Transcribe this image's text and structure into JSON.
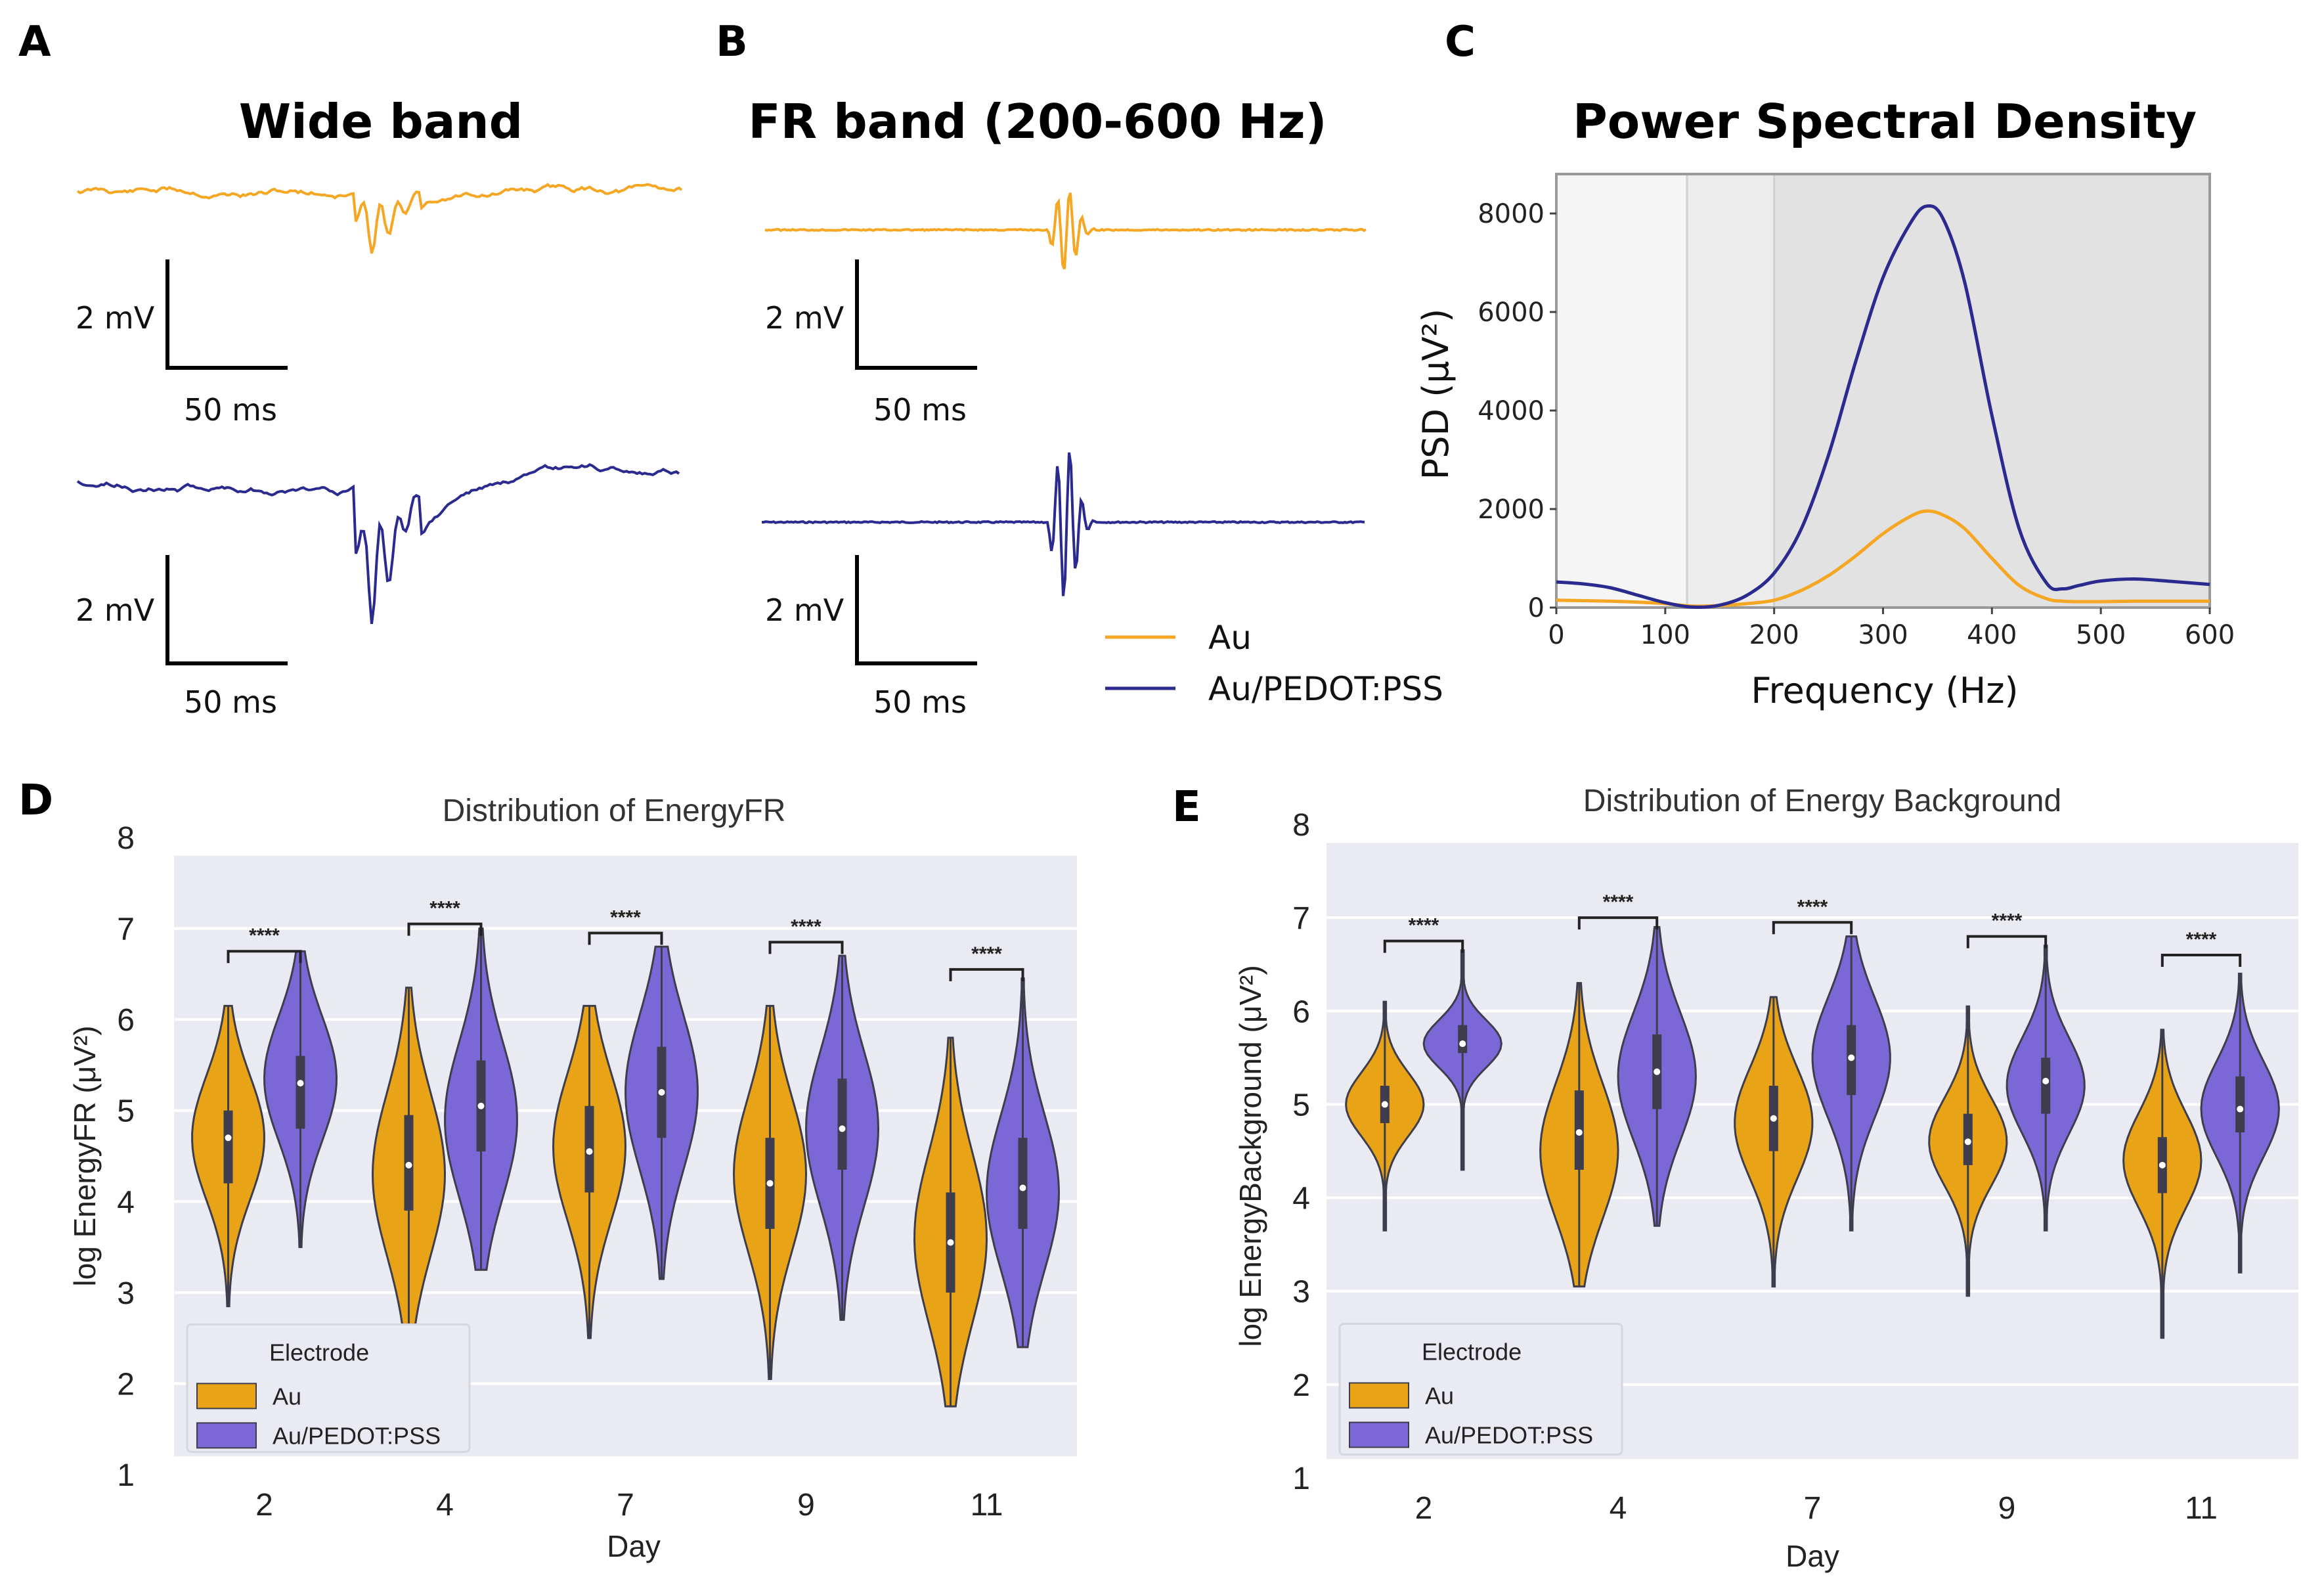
{
  "colors": {
    "au": "#f5a623",
    "pedot": "#2b2a8f",
    "au_violin": "#e8a317",
    "pedot_violin": "#7b68d6",
    "seaborn_bg": "#eaeaf2",
    "violin_edge": "#3d3d4d"
  },
  "panel_labels": [
    "A",
    "B",
    "C",
    "D",
    "E"
  ],
  "panelA": {
    "title": "Wide band",
    "scalebar_v": "2 mV",
    "scalebar_h": "50 ms"
  },
  "panelB": {
    "title": "FR band (200-600 Hz)",
    "scalebar_v": "2 mV",
    "scalebar_h": "50 ms",
    "legend": [
      {
        "label": "Au",
        "series": "au"
      },
      {
        "label": "Au/PEDOT:PSS",
        "series": "pedot"
      }
    ]
  },
  "chart_data": [
    {
      "id": "psd",
      "type": "line",
      "title": "Power Spectral Density",
      "xlabel": "Frequency (Hz)",
      "ylabel": "PSD (μV²)",
      "xlim": [
        0,
        600
      ],
      "ylim": [
        0,
        8800
      ],
      "xticks": [
        0,
        100,
        200,
        300,
        400,
        500,
        600
      ],
      "yticks": [
        0,
        2000,
        4000,
        6000,
        8000
      ],
      "shaded_regions": [
        {
          "from": 0,
          "to": 120,
          "shade": "lightest"
        },
        {
          "from": 120,
          "to": 200,
          "shade": "light"
        },
        {
          "from": 200,
          "to": 600,
          "shade": "medium"
        }
      ],
      "x": [
        0,
        25,
        50,
        75,
        100,
        125,
        150,
        175,
        200,
        225,
        250,
        275,
        300,
        325,
        340,
        355,
        375,
        400,
        425,
        450,
        465,
        480,
        500,
        530,
        560,
        600
      ],
      "series": [
        {
          "name": "Au/PEDOT:PSS",
          "color_key": "pedot",
          "values": [
            520,
            480,
            400,
            250,
            100,
            10,
            50,
            250,
            700,
            1600,
            3100,
            5000,
            6700,
            7800,
            8150,
            7900,
            6600,
            3900,
            1600,
            500,
            380,
            450,
            540,
            580,
            540,
            470
          ]
        },
        {
          "name": "Au",
          "color_key": "au",
          "values": [
            150,
            140,
            130,
            110,
            80,
            30,
            40,
            80,
            150,
            350,
            650,
            1050,
            1500,
            1850,
            1960,
            1880,
            1600,
            1000,
            450,
            180,
            130,
            120,
            120,
            130,
            130,
            130
          ]
        }
      ]
    },
    {
      "id": "energyFR",
      "type": "violin",
      "title": "Distribution of EnergyFR",
      "xlabel": "Day",
      "ylabel": "log EnergyFR (μV²)",
      "ylim": [
        1,
        8
      ],
      "yticks": [
        1,
        2,
        3,
        4,
        5,
        6,
        7,
        8
      ],
      "categories": [
        "2",
        "4",
        "7",
        "9",
        "11"
      ],
      "legend_title": "Electrode",
      "legend": [
        {
          "label": "Au",
          "color_key": "au_violin"
        },
        {
          "label": "Au/PEDOT:PSS",
          "color_key": "pedot_violin"
        }
      ],
      "significance": [
        "****",
        "****",
        "****",
        "****",
        "****"
      ],
      "bracket_heights": [
        6.75,
        7.05,
        6.95,
        6.85,
        6.55
      ],
      "series": [
        {
          "name": "Au",
          "min": [
            2.85,
            2.65,
            2.5,
            2.05,
            1.75
          ],
          "max": [
            6.15,
            6.35,
            6.15,
            6.15,
            5.8
          ],
          "q1": [
            4.2,
            3.9,
            4.1,
            3.7,
            3.0
          ],
          "median": [
            4.7,
            4.4,
            4.55,
            4.2,
            3.55
          ],
          "q3": [
            5.0,
            4.95,
            5.05,
            4.7,
            4.1
          ],
          "mode": [
            4.7,
            4.3,
            4.6,
            4.3,
            3.6
          ]
        },
        {
          "name": "Au/PEDOT:PSS",
          "min": [
            3.5,
            3.25,
            3.15,
            2.7,
            2.4
          ],
          "max": [
            6.75,
            7.0,
            6.8,
            6.7,
            6.45
          ],
          "q1": [
            4.8,
            4.55,
            4.7,
            4.35,
            3.7
          ],
          "median": [
            5.3,
            5.05,
            5.2,
            4.8,
            4.15
          ],
          "q3": [
            5.6,
            5.55,
            5.7,
            5.35,
            4.7
          ],
          "mode": [
            5.35,
            4.9,
            5.2,
            4.8,
            4.1
          ]
        }
      ]
    },
    {
      "id": "energyBG",
      "type": "violin",
      "title": "Distribution of Energy Background",
      "xlabel": "Day",
      "ylabel": "log EnergyBackground (μV²)",
      "ylim": [
        1,
        8
      ],
      "yticks": [
        1,
        2,
        3,
        4,
        5,
        6,
        7,
        8
      ],
      "categories": [
        "2",
        "4",
        "7",
        "9",
        "11"
      ],
      "legend_title": "Electrode",
      "legend": [
        {
          "label": "Au",
          "color_key": "au_violin"
        },
        {
          "label": "Au/PEDOT:PSS",
          "color_key": "pedot_violin"
        }
      ],
      "significance": [
        "****",
        "****",
        "****",
        "****",
        "****"
      ],
      "bracket_heights": [
        6.75,
        7.0,
        6.95,
        6.8,
        6.6
      ],
      "series": [
        {
          "name": "Au",
          "min": [
            3.65,
            3.05,
            3.05,
            2.95,
            2.5
          ],
          "max": [
            6.1,
            6.3,
            6.15,
            6.05,
            5.8
          ],
          "q1": [
            4.8,
            4.3,
            4.5,
            4.35,
            4.05
          ],
          "median": [
            5.0,
            4.7,
            4.85,
            4.6,
            4.35
          ],
          "q3": [
            5.2,
            5.15,
            5.2,
            4.9,
            4.65
          ],
          "mode": [
            5.0,
            4.5,
            4.8,
            4.6,
            4.4
          ]
        },
        {
          "name": "Au/PEDOT:PSS",
          "min": [
            4.3,
            3.7,
            3.65,
            3.65,
            3.2
          ],
          "max": [
            6.65,
            6.9,
            6.8,
            6.7,
            6.4
          ],
          "q1": [
            5.55,
            4.95,
            5.1,
            4.9,
            4.7
          ],
          "median": [
            5.65,
            5.35,
            5.5,
            5.25,
            4.95
          ],
          "q3": [
            5.85,
            5.75,
            5.85,
            5.5,
            5.3
          ],
          "mode": [
            5.65,
            5.3,
            5.5,
            5.2,
            4.95
          ]
        }
      ]
    }
  ]
}
